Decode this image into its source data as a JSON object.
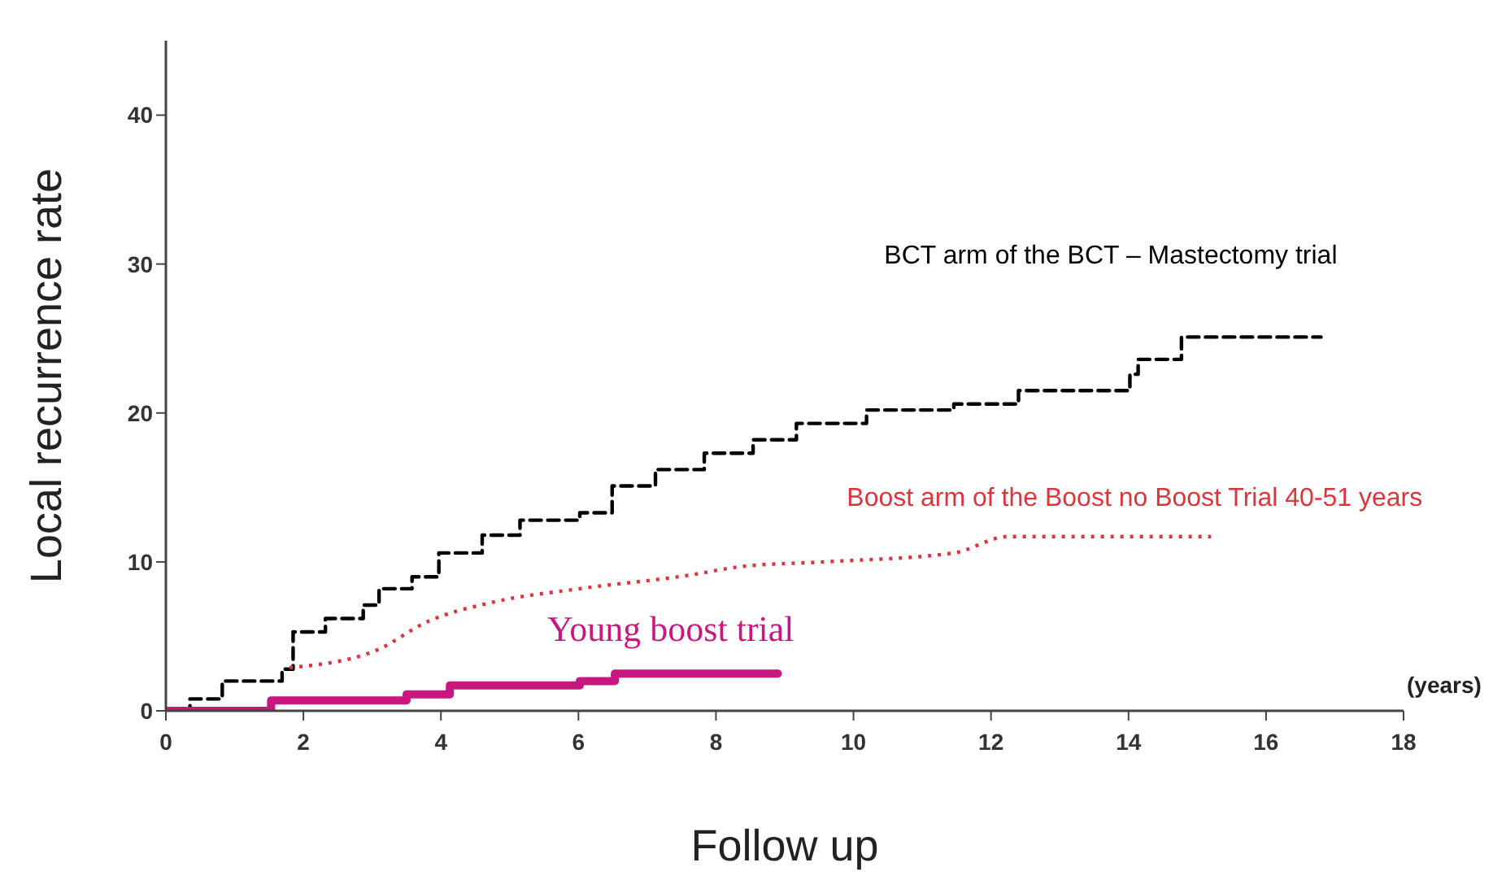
{
  "chart_data": {
    "type": "step",
    "xlabel": "Follow up",
    "ylabel": "Local recurrence rate",
    "xlim": [
      0,
      18
    ],
    "xticks": [
      0,
      2,
      4,
      6,
      8,
      10,
      12,
      14,
      16,
      18
    ],
    "ylim": [
      0,
      45
    ],
    "yticks": [
      0,
      10,
      20,
      30,
      40
    ],
    "marker": "none",
    "annotations": [
      "(years)"
    ],
    "series": [
      {
        "name": "BCT arm of the BCT – Mastectomy trial",
        "line_style": "dashed",
        "color": "#000000",
        "x": [
          0,
          0.35,
          0.82,
          1.69,
          1.85,
          2.32,
          2.87,
          3.1,
          3.58,
          3.97,
          4.6,
          5.15,
          6.02,
          6.49,
          7.12,
          7.83,
          8.54,
          9.17,
          10.19,
          11.46,
          12.4,
          14.02,
          14.14,
          14.77,
          16.8
        ],
        "values": [
          0,
          0.8,
          2.0,
          2.8,
          5.3,
          6.2,
          7.1,
          8.2,
          9.0,
          10.6,
          11.8,
          12.8,
          13.3,
          15.1,
          16.2,
          17.3,
          18.2,
          19.3,
          20.2,
          20.6,
          21.5,
          22.6,
          23.6,
          25.1,
          25.1
        ]
      },
      {
        "name": "Boost arm of the Boost no Boost Trial  40-51 years",
        "type": "line",
        "line_style": "dotted",
        "color": "#d9363e",
        "x": [
          1.8,
          3.03,
          3.81,
          4.76,
          6.02,
          7.6,
          8.39,
          9.57,
          11.46,
          12.25,
          15.2
        ],
        "values": [
          2.9,
          4.0,
          6.0,
          7.3,
          8.2,
          9.1,
          9.7,
          10.0,
          10.6,
          11.7,
          11.7
        ]
      },
      {
        "name": "Young boost trial",
        "line_style": "solid",
        "color": "#c8177f",
        "x": [
          0,
          1.53,
          3.5,
          4.13,
          6.02,
          6.53,
          8.9
        ],
        "values": [
          0,
          0.7,
          1.1,
          1.7,
          2.0,
          2.5,
          2.5
        ]
      }
    ]
  }
}
